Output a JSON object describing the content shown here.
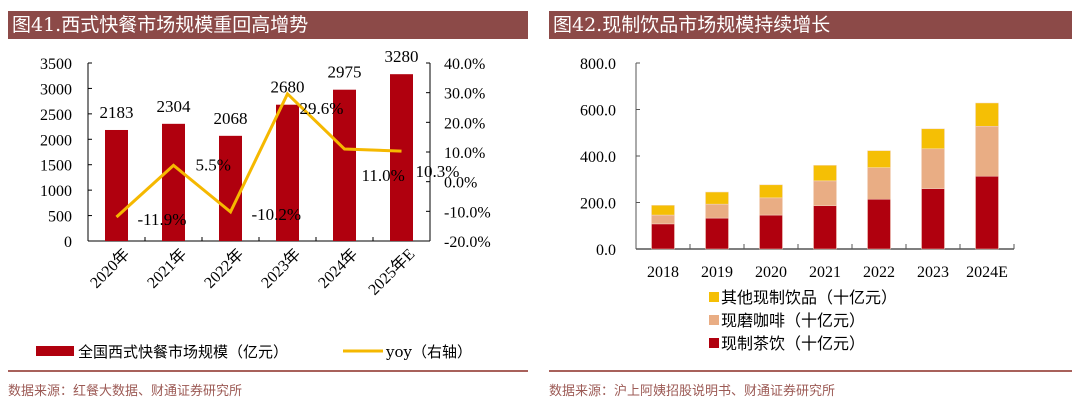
{
  "colors": {
    "title_bg": "#8c4a48",
    "bar_red": "#b0000e",
    "line_yellow": "#f5b800",
    "coffee_peach": "#e9ad84",
    "other_yellow": "#f5bf05",
    "source_text": "#9c5a55"
  },
  "panels": [
    {
      "title": "图41.西式快餐市场规模重回高增势",
      "source": "数据来源：红餐大数据、财通证券研究所"
    },
    {
      "title": "图42.现制饮品市场规模持续增长",
      "source": "数据来源：沪上阿姨招股说明书、财通证券研究所"
    }
  ],
  "chart_data": [
    {
      "type": "bar+line",
      "title": "图41.西式快餐市场规模重回高增势",
      "categories": [
        "2020年",
        "2021年",
        "2022年",
        "2023年",
        "2024年",
        "2025年E"
      ],
      "series": [
        {
          "name": "全国西式快餐市场规模（亿元）",
          "type": "bar",
          "axis": "left",
          "values": [
            2183,
            2304,
            2068,
            2680,
            2975,
            3280
          ],
          "labels": [
            "2183",
            "2304",
            "2068",
            "2680",
            "2975",
            "3280"
          ]
        },
        {
          "name": "yoy（右轴）",
          "type": "line",
          "axis": "right",
          "values": [
            -11.9,
            5.5,
            -10.2,
            29.6,
            11.0,
            10.3
          ],
          "labels": [
            "-11.9%",
            "5.5%",
            "-10.2%",
            "29.6%",
            "11.0%",
            "10.3%"
          ]
        }
      ],
      "y_left": {
        "range": [
          0,
          3500
        ],
        "ticks": [
          0,
          500,
          1000,
          1500,
          2000,
          2500,
          3000,
          3500
        ],
        "tick_labels": [
          "0",
          "500",
          "1000",
          "1500",
          "2000",
          "2500",
          "3000",
          "3500"
        ]
      },
      "y_right": {
        "range": [
          -20,
          40
        ],
        "ticks": [
          -20,
          -10,
          0,
          10,
          20,
          30,
          40
        ],
        "tick_labels": [
          "-20.0%",
          "-10.0%",
          "0.0%",
          "10.0%",
          "20.0%",
          "30.0%",
          "40.0%"
        ]
      },
      "legend": {
        "placement": "bottom",
        "entries": [
          "全国西式快餐市场规模（亿元）",
          "yoy（右轴）"
        ]
      },
      "grid": false
    },
    {
      "type": "stacked-bar",
      "title": "图42.现制饮品市场规模持续增长",
      "categories": [
        "2018",
        "2019",
        "2020",
        "2021",
        "2022",
        "2023",
        "2024E"
      ],
      "series": [
        {
          "name": "现制茶饮（十亿元）",
          "values": [
            108,
            133,
            146,
            186,
            214,
            260,
            313
          ]
        },
        {
          "name": "现磨咖啡（十亿元）",
          "values": [
            38,
            60,
            74,
            107,
            136,
            171,
            215
          ]
        },
        {
          "name": "其他现制饮品（十亿元）",
          "values": [
            42,
            52,
            56,
            67,
            73,
            86,
            100
          ]
        }
      ],
      "y": {
        "range": [
          0,
          800
        ],
        "ticks": [
          0,
          200,
          400,
          600,
          800
        ],
        "tick_labels": [
          "0.0",
          "200.0",
          "400.0",
          "600.0",
          "800.0"
        ]
      },
      "legend": {
        "placement": "bottom",
        "entries": [
          "其他现制饮品（十亿元）",
          "现磨咖啡（十亿元）",
          "现制茶饮（十亿元）"
        ]
      },
      "grid": false
    }
  ]
}
